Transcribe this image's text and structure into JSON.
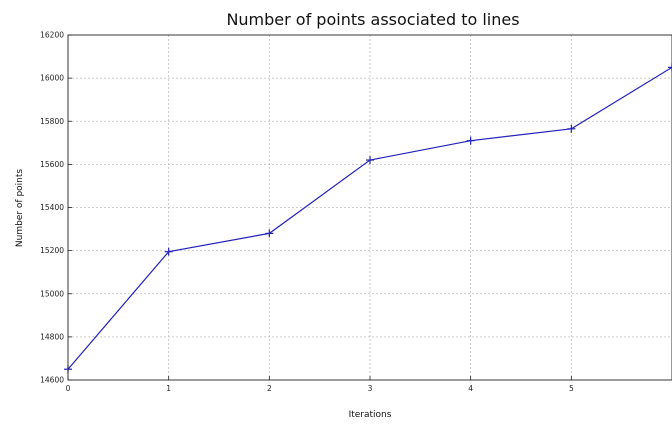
{
  "chart_data": {
    "type": "line",
    "title": "Number of points associated to lines",
    "xlabel": "Iterations",
    "ylabel": "Number of points",
    "x": [
      0,
      1,
      2,
      3,
      4,
      5,
      6
    ],
    "series": [
      {
        "values": [
          14650,
          15195,
          15280,
          15620,
          15710,
          15765,
          16050
        ],
        "color": "#2222bb",
        "marker": "plus"
      }
    ],
    "xticks": [
      "0",
      "1",
      "2",
      "3",
      "4",
      "5"
    ],
    "yticks": [
      "14600",
      "14800",
      "15000",
      "15200",
      "15400",
      "15600",
      "15800",
      "16000",
      "16200"
    ],
    "xlim": [
      0,
      6
    ],
    "ylim": [
      14600,
      16200
    ],
    "grid": true
  }
}
